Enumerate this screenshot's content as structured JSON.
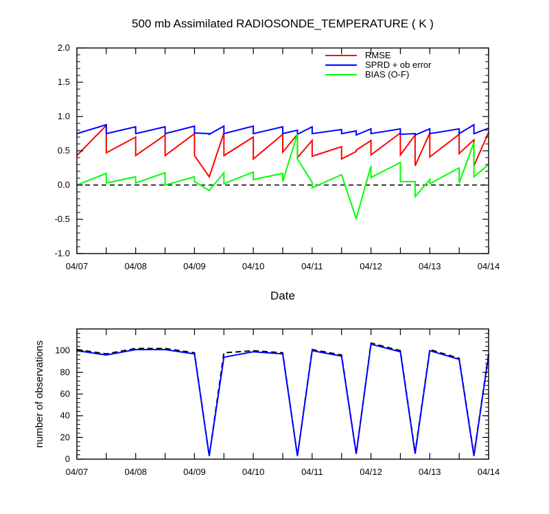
{
  "chart_data": [
    {
      "type": "line",
      "title": "500 mb Assimilated RADIOSONDE_TEMPERATURE ( K )",
      "xlabel": "Date",
      "ylabel": "",
      "x_ticks": [
        "04/07",
        "04/08",
        "04/09",
        "04/10",
        "04/11",
        "04/12",
        "04/13",
        "04/14"
      ],
      "xlim": [
        0,
        7
      ],
      "ylim": [
        -1.0,
        2.0
      ],
      "y_ticks": [
        "-1.0",
        "-0.5",
        "0.0",
        "0.5",
        "1.0",
        "1.5",
        "2.0"
      ],
      "reference_line": {
        "y": 0,
        "style": "dashed"
      },
      "legend_position": "top-right",
      "series": [
        {
          "name": "RMSE",
          "color": "#ff0000",
          "points": [
            [
              0,
              0.43
            ],
            [
              0.5,
              0.87
            ],
            [
              0.5,
              0.47
            ],
            [
              1.0,
              0.7
            ],
            [
              1.0,
              0.43
            ],
            [
              1.5,
              0.73
            ],
            [
              1.5,
              0.43
            ],
            [
              2.0,
              0.75
            ],
            [
              2.0,
              0.43
            ],
            [
              2.25,
              0.12
            ],
            [
              2.5,
              0.76
            ],
            [
              2.5,
              0.43
            ],
            [
              3.0,
              0.7
            ],
            [
              3.0,
              0.38
            ],
            [
              3.5,
              0.74
            ],
            [
              3.5,
              0.48
            ],
            [
              3.75,
              0.74
            ],
            [
              3.75,
              0.4
            ],
            [
              4.0,
              0.65
            ],
            [
              4.0,
              0.42
            ],
            [
              4.5,
              0.56
            ],
            [
              4.5,
              0.38
            ],
            [
              4.75,
              0.49
            ],
            [
              4.75,
              0.51
            ],
            [
              5.0,
              0.65
            ],
            [
              5.0,
              0.44
            ],
            [
              5.5,
              0.76
            ],
            [
              5.5,
              0.44
            ],
            [
              5.75,
              0.73
            ],
            [
              5.75,
              0.28
            ],
            [
              6.0,
              0.76
            ],
            [
              6.0,
              0.41
            ],
            [
              6.5,
              0.74
            ],
            [
              6.5,
              0.46
            ],
            [
              6.75,
              0.66
            ],
            [
              6.75,
              0.28
            ],
            [
              7.0,
              0.77
            ]
          ]
        },
        {
          "name": "SPRD + ob error",
          "color": "#0000ff",
          "points": [
            [
              0,
              0.75
            ],
            [
              0.5,
              0.88
            ],
            [
              0.5,
              0.75
            ],
            [
              1.0,
              0.85
            ],
            [
              1.0,
              0.75
            ],
            [
              1.5,
              0.85
            ],
            [
              1.5,
              0.75
            ],
            [
              2.0,
              0.86
            ],
            [
              2.0,
              0.76
            ],
            [
              2.25,
              0.75
            ],
            [
              2.25,
              0.74
            ],
            [
              2.5,
              0.86
            ],
            [
              2.5,
              0.75
            ],
            [
              3.0,
              0.86
            ],
            [
              3.0,
              0.75
            ],
            [
              3.5,
              0.85
            ],
            [
              3.5,
              0.75
            ],
            [
              3.75,
              0.8
            ],
            [
              3.75,
              0.74
            ],
            [
              4.0,
              0.85
            ],
            [
              4.0,
              0.75
            ],
            [
              4.5,
              0.81
            ],
            [
              4.5,
              0.75
            ],
            [
              4.75,
              0.79
            ],
            [
              4.75,
              0.73
            ],
            [
              5.0,
              0.82
            ],
            [
              5.0,
              0.75
            ],
            [
              5.5,
              0.82
            ],
            [
              5.5,
              0.74
            ],
            [
              5.75,
              0.75
            ],
            [
              5.75,
              0.73
            ],
            [
              6.0,
              0.82
            ],
            [
              6.0,
              0.75
            ],
            [
              6.5,
              0.82
            ],
            [
              6.5,
              0.75
            ],
            [
              6.75,
              0.88
            ],
            [
              6.75,
              0.75
            ],
            [
              7.0,
              0.83
            ]
          ]
        },
        {
          "name": "BIAS (O-F)",
          "color": "#00ff00",
          "points": [
            [
              0,
              0.0
            ],
            [
              0.5,
              0.17
            ],
            [
              0.5,
              0.03
            ],
            [
              1.0,
              0.12
            ],
            [
              1.0,
              0.03
            ],
            [
              1.5,
              0.18
            ],
            [
              1.5,
              0.0
            ],
            [
              2.0,
              0.12
            ],
            [
              2.0,
              0.05
            ],
            [
              2.25,
              -0.08
            ],
            [
              2.5,
              0.18
            ],
            [
              2.5,
              0.02
            ],
            [
              3.0,
              0.19
            ],
            [
              3.0,
              0.08
            ],
            [
              3.5,
              0.17
            ],
            [
              3.5,
              0.05
            ],
            [
              3.75,
              0.75
            ],
            [
              3.75,
              0.38
            ],
            [
              4.0,
              0.04
            ],
            [
              4.0,
              -0.04
            ],
            [
              4.5,
              0.15
            ],
            [
              4.75,
              -0.49
            ],
            [
              5.0,
              0.28
            ],
            [
              5.0,
              0.11
            ],
            [
              5.5,
              0.33
            ],
            [
              5.5,
              0.05
            ],
            [
              5.75,
              0.05
            ],
            [
              5.75,
              -0.17
            ],
            [
              6.0,
              0.08
            ],
            [
              6.0,
              0.02
            ],
            [
              6.5,
              0.25
            ],
            [
              6.5,
              0.03
            ],
            [
              6.75,
              0.62
            ],
            [
              6.75,
              0.12
            ],
            [
              7.0,
              0.3
            ]
          ]
        }
      ]
    },
    {
      "type": "line",
      "title": "",
      "xlabel": "",
      "ylabel": "number of observations",
      "x_ticks": [
        "04/07",
        "04/08",
        "04/09",
        "04/10",
        "04/11",
        "04/12",
        "04/13",
        "04/14"
      ],
      "xlim": [
        0,
        7
      ],
      "ylim": [
        0,
        120
      ],
      "y_ticks": [
        "0",
        "20",
        "40",
        "60",
        "80",
        "100"
      ],
      "series": [
        {
          "style": "dashed",
          "color": "#000000",
          "points": [
            [
              0,
              101
            ],
            [
              0.5,
              97
            ],
            [
              1.0,
              102
            ],
            [
              1.5,
              102
            ],
            [
              2.0,
              98
            ],
            [
              2.25,
              3
            ],
            [
              2.5,
              98
            ],
            [
              3.0,
              100
            ],
            [
              3.5,
              98
            ],
            [
              3.75,
              3
            ],
            [
              4.0,
              101
            ],
            [
              4.5,
              96
            ],
            [
              4.75,
              5
            ],
            [
              5.0,
              107
            ],
            [
              5.5,
              100
            ],
            [
              5.75,
              6
            ],
            [
              6.0,
              101
            ],
            [
              6.5,
              93
            ],
            [
              6.75,
              4
            ],
            [
              7.0,
              97
            ]
          ]
        },
        {
          "style": "solid",
          "color": "#0000ff",
          "points": [
            [
              0,
              100
            ],
            [
              0.5,
              96
            ],
            [
              1.0,
              101
            ],
            [
              1.5,
              101
            ],
            [
              2.0,
              97
            ],
            [
              2.25,
              3
            ],
            [
              2.5,
              94
            ],
            [
              3.0,
              99
            ],
            [
              3.5,
              97
            ],
            [
              3.75,
              3
            ],
            [
              4.0,
              100
            ],
            [
              4.5,
              95
            ],
            [
              4.75,
              5
            ],
            [
              5.0,
              106
            ],
            [
              5.5,
              99
            ],
            [
              5.75,
              5
            ],
            [
              6.0,
              100
            ],
            [
              6.5,
              92
            ],
            [
              6.75,
              3
            ],
            [
              7.0,
              96
            ]
          ]
        }
      ]
    }
  ]
}
